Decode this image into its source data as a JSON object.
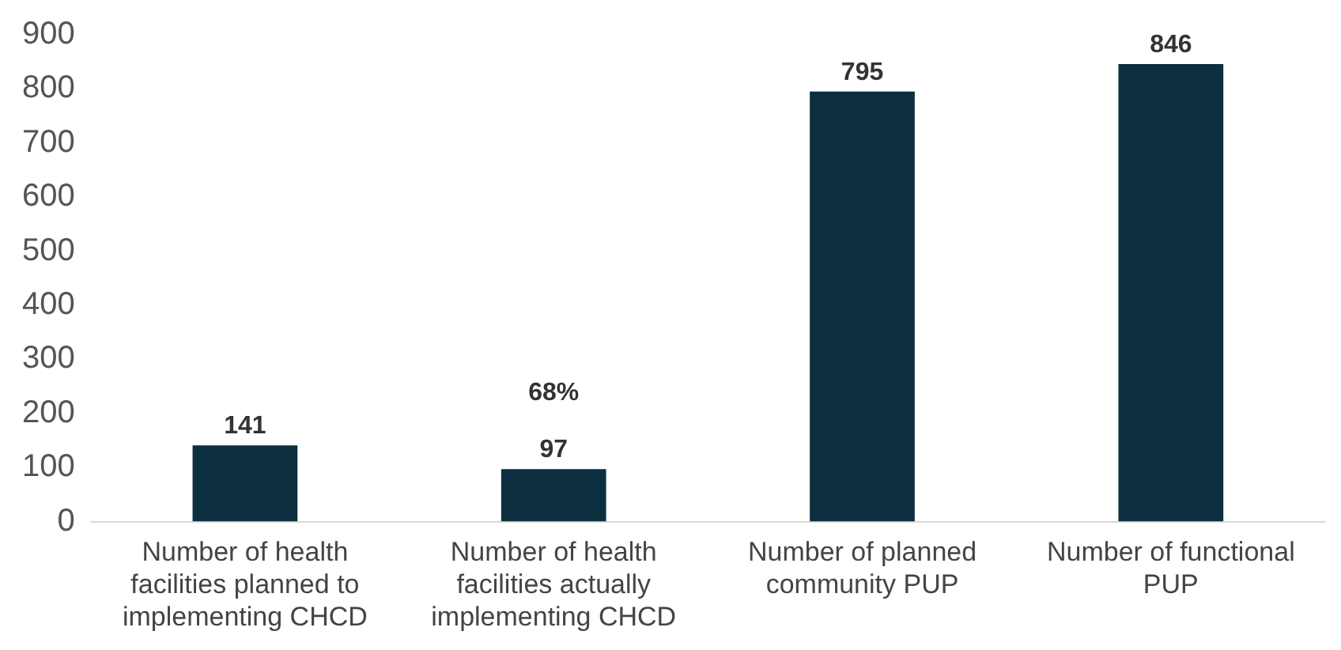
{
  "chart_data": {
    "type": "bar",
    "categories": [
      "Number of health facilities planned to implementing CHCD",
      "Number of health facilities actually implementing CHCD",
      "Number of planned community PUP",
      "Number of functional PUP"
    ],
    "values": [
      141,
      97,
      795,
      846
    ],
    "color": "#0b2f3f",
    "ylim": [
      0,
      900
    ],
    "yticks": [
      0,
      100,
      200,
      300,
      400,
      500,
      600,
      700,
      800,
      900
    ],
    "grid": false,
    "legend": false,
    "data_labels": true,
    "annotations": [
      "68%"
    ]
  }
}
